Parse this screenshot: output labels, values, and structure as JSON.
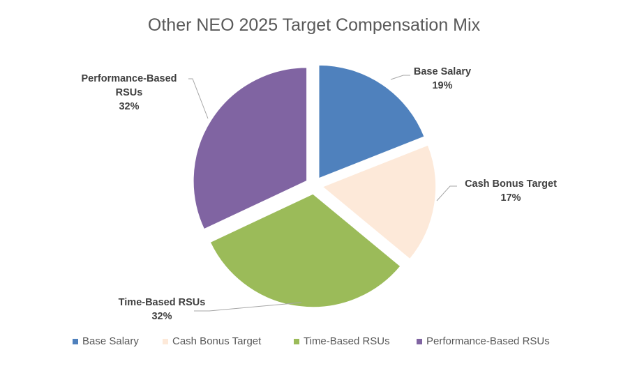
{
  "chart_data": {
    "type": "pie",
    "title": "Other NEO 2025 Target Compensation Mix",
    "categories": [
      "Base Salary",
      "Cash Bonus Target",
      "Time-Based RSUs",
      "Performance-Based RSUs"
    ],
    "values": [
      19,
      17,
      32,
      32
    ],
    "value_labels": [
      "19%",
      "17%",
      "32%",
      "32%"
    ],
    "colors": [
      "#4f81bd",
      "#fde9d9",
      "#9bbb59",
      "#8064a2"
    ],
    "exploded": true,
    "legend": {
      "position": "bottom",
      "entries": [
        "Base Salary",
        "Cash Bonus Target",
        "Time-Based RSUs",
        "Performance-Based RSUs"
      ]
    },
    "data_labels": [
      {
        "lines": [
          "Base Salary"
        ],
        "value": "19%"
      },
      {
        "lines": [
          "Cash Bonus Target"
        ],
        "value": "17%"
      },
      {
        "lines": [
          "Time-Based RSUs"
        ],
        "value": "32%"
      },
      {
        "lines": [
          "Performance-Based",
          "RSUs"
        ],
        "value": "32%"
      }
    ]
  }
}
